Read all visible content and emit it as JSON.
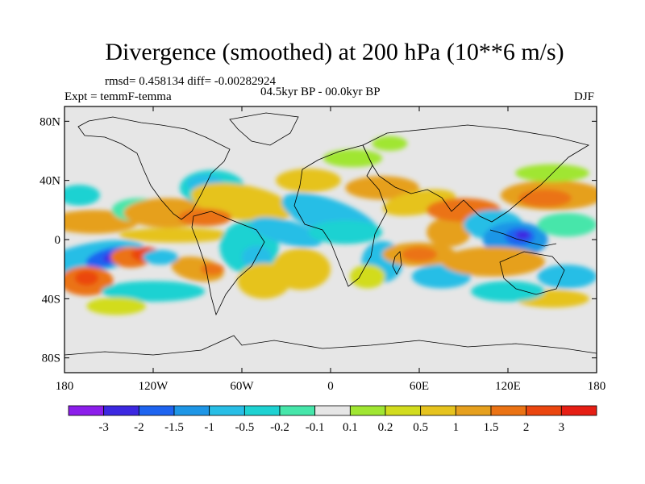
{
  "title": "Divergence (smoothed) at 200 hPa (10**6 m/s)",
  "stats": "rmsd= 0.458134 diff= -0.00282924",
  "experiment": "Expt = temmF-temma",
  "period": "04.5kyr BP - 00.0kyr BP",
  "season": "DJF",
  "map": {
    "projection": "cylindrical equidistant",
    "lon_range": [
      -180,
      180
    ],
    "lat_range": [
      -90,
      90
    ],
    "background_color": "#e6e6e6",
    "x_ticks": [
      "180",
      "120W",
      "60W",
      "0",
      "60E",
      "120E",
      "180"
    ],
    "y_ticks": [
      "80N",
      "40N",
      "0",
      "40S",
      "80S"
    ]
  },
  "colorbar": {
    "levels": [
      "-3",
      "-2",
      "-1.5",
      "-1",
      "-0.5",
      "-0.2",
      "-0.1",
      "0.1",
      "0.2",
      "0.5",
      "1",
      "1.5",
      "2",
      "3"
    ],
    "colors": [
      "#8c1eeb",
      "#3c28e1",
      "#1e64f0",
      "#1e96e6",
      "#28bee6",
      "#1ed2d2",
      "#46e6aa",
      "#e6e6e6",
      "#a0e632",
      "#d2dc1e",
      "#e6c31e",
      "#e6a01e",
      "#eb7314",
      "#eb460f",
      "#e61e14"
    ]
  },
  "anomalies": [
    {
      "lon": -160,
      "lat": -12,
      "rx": 35,
      "ry": 10,
      "rot": -10,
      "c": 4
    },
    {
      "lon": -150,
      "lat": -12,
      "rx": 16,
      "ry": 6,
      "rot": -15,
      "c": 2
    },
    {
      "lon": -148,
      "lat": -12,
      "rx": 6,
      "ry": 3,
      "rot": -15,
      "c": 1
    },
    {
      "lon": -165,
      "lat": -28,
      "rx": 18,
      "ry": 10,
      "rot": 0,
      "c": 12
    },
    {
      "lon": -165,
      "lat": -26,
      "rx": 8,
      "ry": 5,
      "rot": 0,
      "c": 13
    },
    {
      "lon": -160,
      "lat": 12,
      "rx": 30,
      "ry": 8,
      "rot": 0,
      "c": 11
    },
    {
      "lon": -170,
      "lat": 30,
      "rx": 14,
      "ry": 7,
      "rot": 0,
      "c": 5
    },
    {
      "lon": -130,
      "lat": 20,
      "rx": 18,
      "ry": 8,
      "rot": 0,
      "c": 6
    },
    {
      "lon": -135,
      "lat": -12,
      "rx": 14,
      "ry": 7,
      "rot": 0,
      "c": 12
    },
    {
      "lon": -125,
      "lat": -10,
      "rx": 10,
      "ry": 5,
      "rot": 0,
      "c": 13
    },
    {
      "lon": -105,
      "lat": 3,
      "rx": 38,
      "ry": 5,
      "rot": 0,
      "c": 10
    },
    {
      "lon": -120,
      "lat": -35,
      "rx": 35,
      "ry": 7,
      "rot": 0,
      "c": 5
    },
    {
      "lon": -90,
      "lat": -20,
      "rx": 18,
      "ry": 8,
      "rot": 10,
      "c": 11
    },
    {
      "lon": -80,
      "lat": -20,
      "rx": 8,
      "ry": 4,
      "rot": 0,
      "c": 12
    },
    {
      "lon": -115,
      "lat": -12,
      "rx": 12,
      "ry": 5,
      "rot": 0,
      "c": 4
    },
    {
      "lon": -145,
      "lat": -45,
      "rx": 20,
      "ry": 6,
      "rot": 0,
      "c": 9
    },
    {
      "lon": -110,
      "lat": 18,
      "rx": 30,
      "ry": 10,
      "rot": 0,
      "c": 11
    },
    {
      "lon": -80,
      "lat": 35,
      "rx": 22,
      "ry": 12,
      "rot": 0,
      "c": 5
    },
    {
      "lon": -85,
      "lat": 38,
      "rx": 12,
      "ry": 6,
      "rot": 0,
      "c": 4
    },
    {
      "lon": -60,
      "lat": 25,
      "rx": 35,
      "ry": 12,
      "rot": 10,
      "c": 10
    },
    {
      "lon": -85,
      "lat": 15,
      "rx": 18,
      "ry": 6,
      "rot": 0,
      "c": 12
    },
    {
      "lon": -55,
      "lat": -5,
      "rx": 20,
      "ry": 18,
      "rot": 0,
      "c": 5
    },
    {
      "lon": -50,
      "lat": -12,
      "rx": 10,
      "ry": 8,
      "rot": 0,
      "c": 4
    },
    {
      "lon": -45,
      "lat": -28,
      "rx": 18,
      "ry": 12,
      "rot": 0,
      "c": 10
    },
    {
      "lon": -30,
      "lat": 5,
      "rx": 25,
      "ry": 8,
      "rot": 15,
      "c": 4
    },
    {
      "lon": -20,
      "lat": -20,
      "rx": 20,
      "ry": 14,
      "rot": 0,
      "c": 10
    },
    {
      "lon": -15,
      "lat": 40,
      "rx": 22,
      "ry": 8,
      "rot": 0,
      "c": 10
    },
    {
      "lon": 0,
      "lat": 15,
      "rx": 35,
      "ry": 12,
      "rot": 20,
      "c": 4
    },
    {
      "lon": 10,
      "lat": 5,
      "rx": 25,
      "ry": 8,
      "rot": 0,
      "c": 5
    },
    {
      "lon": 35,
      "lat": 35,
      "rx": 25,
      "ry": 8,
      "rot": 0,
      "c": 11
    },
    {
      "lon": 40,
      "lat": 65,
      "rx": 12,
      "ry": 5,
      "rot": 0,
      "c": 8
    },
    {
      "lon": 15,
      "lat": 55,
      "rx": 20,
      "ry": 6,
      "rot": 0,
      "c": 8
    },
    {
      "lon": 60,
      "lat": 25,
      "rx": 25,
      "ry": 8,
      "rot": -10,
      "c": 10
    },
    {
      "lon": 35,
      "lat": -15,
      "rx": 14,
      "ry": 14,
      "rot": 0,
      "c": 4
    },
    {
      "lon": 25,
      "lat": -25,
      "rx": 12,
      "ry": 8,
      "rot": 0,
      "c": 9
    },
    {
      "lon": 60,
      "lat": -10,
      "rx": 25,
      "ry": 8,
      "rot": 0,
      "c": 11
    },
    {
      "lon": 60,
      "lat": -10,
      "rx": 12,
      "ry": 5,
      "rot": 0,
      "c": 12
    },
    {
      "lon": 75,
      "lat": -25,
      "rx": 20,
      "ry": 8,
      "rot": 0,
      "c": 4
    },
    {
      "lon": 80,
      "lat": 5,
      "rx": 15,
      "ry": 10,
      "rot": 0,
      "c": 11
    },
    {
      "lon": 90,
      "lat": 20,
      "rx": 25,
      "ry": 8,
      "rot": 0,
      "c": 12
    },
    {
      "lon": 110,
      "lat": 10,
      "rx": 20,
      "ry": 10,
      "rot": 0,
      "c": 4
    },
    {
      "lon": 125,
      "lat": 0,
      "rx": 22,
      "ry": 12,
      "rot": 0,
      "c": 3
    },
    {
      "lon": 128,
      "lat": 2,
      "rx": 10,
      "ry": 6,
      "rot": 0,
      "c": 2
    },
    {
      "lon": 130,
      "lat": 3,
      "rx": 5,
      "ry": 3,
      "rot": 0,
      "c": 1
    },
    {
      "lon": 110,
      "lat": -15,
      "rx": 35,
      "ry": 10,
      "rot": 0,
      "c": 11
    },
    {
      "lon": 150,
      "lat": 30,
      "rx": 35,
      "ry": 10,
      "rot": 0,
      "c": 11
    },
    {
      "lon": 145,
      "lat": 28,
      "rx": 18,
      "ry": 6,
      "rot": 0,
      "c": 12
    },
    {
      "lon": 150,
      "lat": 45,
      "rx": 25,
      "ry": 6,
      "rot": 0,
      "c": 8
    },
    {
      "lon": 160,
      "lat": 10,
      "rx": 20,
      "ry": 8,
      "rot": 0,
      "c": 6
    },
    {
      "lon": 160,
      "lat": -25,
      "rx": 20,
      "ry": 8,
      "rot": 0,
      "c": 4
    },
    {
      "lon": 150,
      "lat": -40,
      "rx": 25,
      "ry": 6,
      "rot": 0,
      "c": 10
    },
    {
      "lon": 120,
      "lat": -35,
      "rx": 25,
      "ry": 7,
      "rot": 0,
      "c": 5
    }
  ]
}
